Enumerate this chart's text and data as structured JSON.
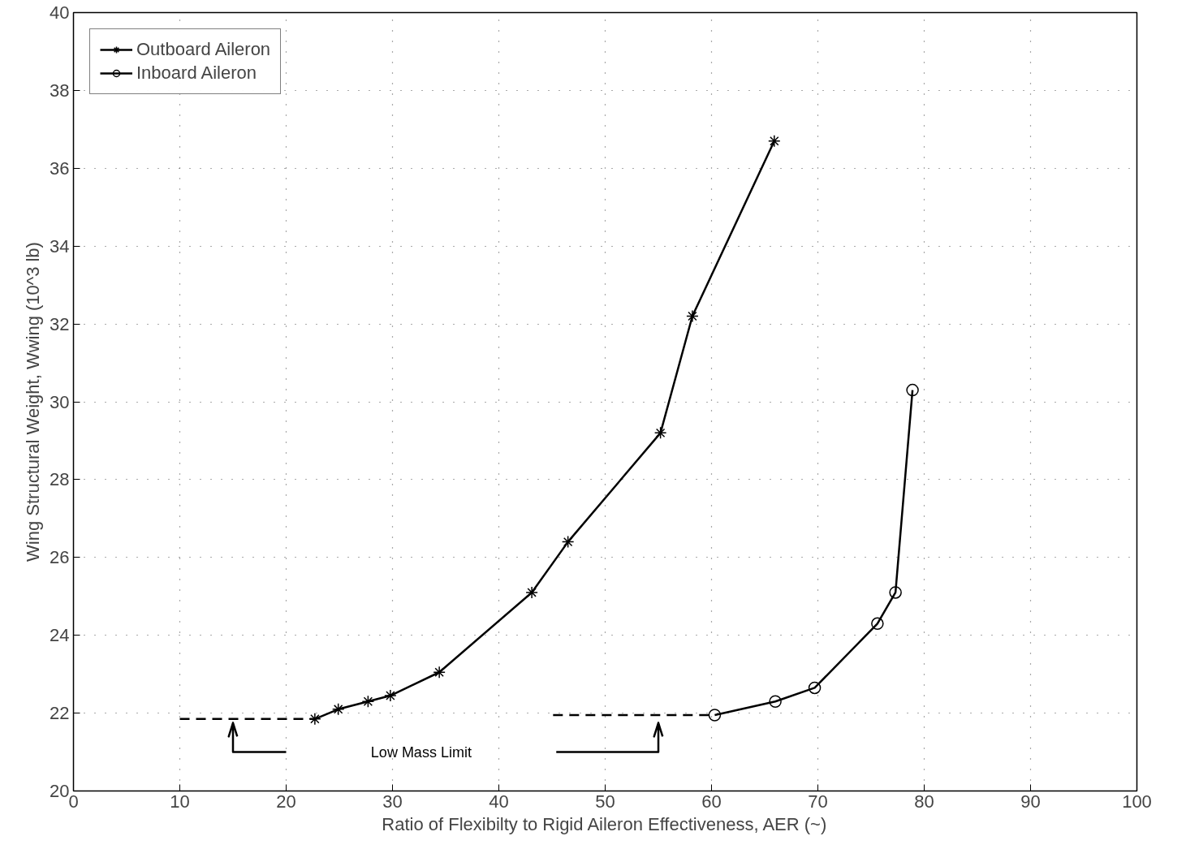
{
  "chart_data": {
    "type": "line",
    "xlabel": "Ratio of Flexibilty to Rigid Aileron Effectiveness, AER (~)",
    "ylabel": "Wing Structural Weight, Wwing (10^3 lb)",
    "xlim": [
      0,
      100
    ],
    "ylim": [
      20,
      40
    ],
    "xticks": [
      0,
      10,
      20,
      30,
      40,
      50,
      60,
      70,
      80,
      90,
      100
    ],
    "yticks": [
      20,
      22,
      24,
      26,
      28,
      30,
      32,
      34,
      36,
      38,
      40
    ],
    "grid": true,
    "legend": "top left",
    "line_style": "solid",
    "series": [
      {
        "name": "Outboard Aileron",
        "color": "#000000",
        "marker": "cross",
        "x": [
          22.7,
          24.9,
          27.7,
          29.8,
          34.4,
          43.1,
          46.5,
          55.2,
          58.2,
          65.9
        ],
        "values": [
          21.85,
          22.1,
          22.3,
          22.45,
          23.05,
          25.1,
          26.4,
          29.2,
          32.2,
          36.7
        ]
      },
      {
        "name": "Inboard Aileron",
        "color": "#000000",
        "marker": "circle",
        "x": [
          60.3,
          66.0,
          69.7,
          75.6,
          77.3,
          78.9
        ],
        "values": [
          21.95,
          22.3,
          22.65,
          24.3,
          25.1,
          30.3
        ]
      },
      {
        "color": "#000000",
        "marker": "none",
        "line_style": "dashed",
        "x": [
          10,
          22.7
        ],
        "values": [
          21.85,
          21.85
        ]
      },
      {
        "color": "#000000",
        "marker": "none",
        "line_style": "dashed",
        "x": [
          45.1,
          60.3
        ],
        "values": [
          21.95,
          21.95
        ]
      },
      {
        "color": "#000000",
        "marker": "none",
        "x": [
          20,
          15,
          15,
          14.6,
          15,
          15.4
        ],
        "values": [
          21.0,
          21.0,
          21.75,
          21.4,
          21.75,
          21.4
        ]
      },
      {
        "color": "#000000",
        "marker": "none",
        "x": [
          45.4,
          55,
          55,
          54.6,
          55,
          55.4
        ],
        "values": [
          21.0,
          21.0,
          21.75,
          21.4,
          21.75,
          21.4
        ]
      }
    ],
    "annotations": [
      "Low Mass Limit"
    ]
  }
}
